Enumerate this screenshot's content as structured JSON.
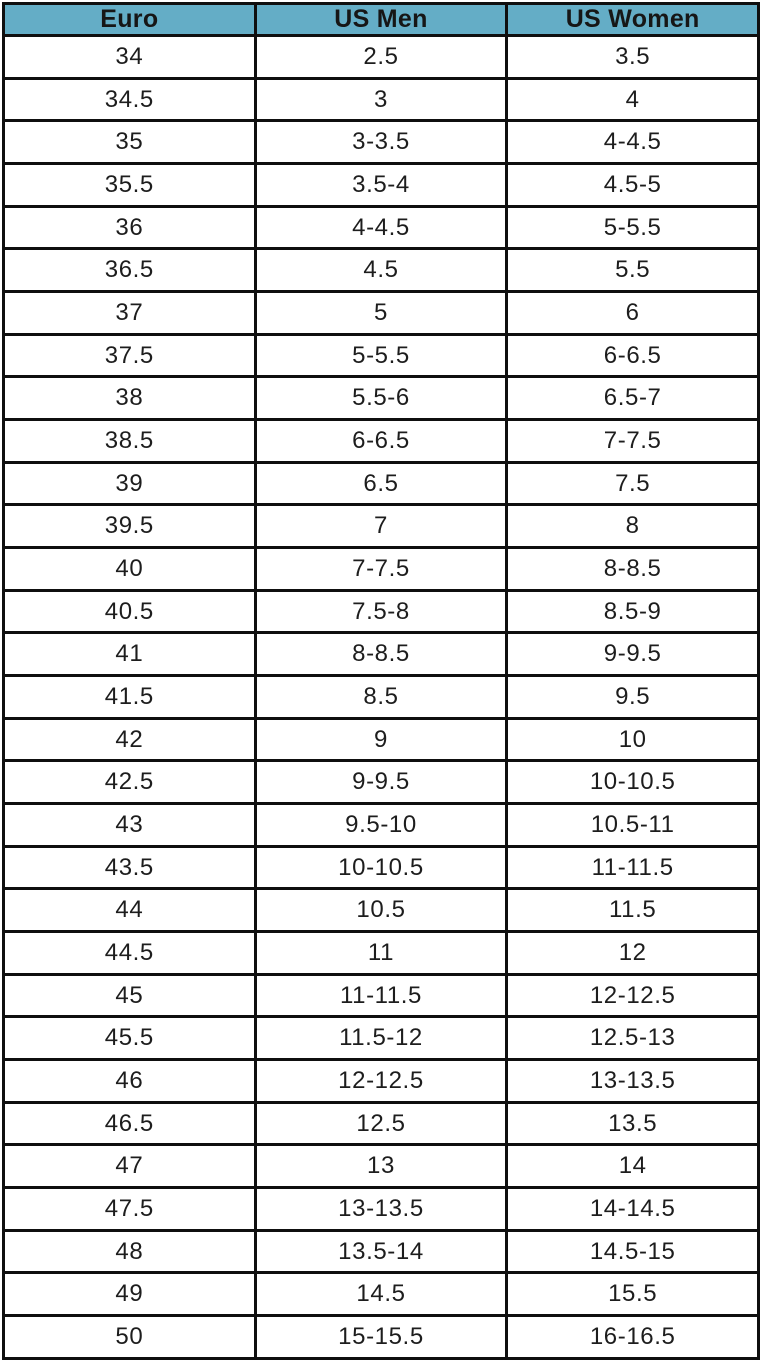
{
  "chart_data": {
    "type": "table",
    "columns": [
      "Euro",
      "US Men",
      "US Women"
    ],
    "rows": [
      [
        "34",
        "2.5",
        "3.5"
      ],
      [
        "34.5",
        "3",
        "4"
      ],
      [
        "35",
        "3-3.5",
        "4-4.5"
      ],
      [
        "35.5",
        "3.5-4",
        "4.5-5"
      ],
      [
        "36",
        "4-4.5",
        "5-5.5"
      ],
      [
        "36.5",
        "4.5",
        "5.5"
      ],
      [
        "37",
        "5",
        "6"
      ],
      [
        "37.5",
        "5-5.5",
        "6-6.5"
      ],
      [
        "38",
        "5.5-6",
        "6.5-7"
      ],
      [
        "38.5",
        "6-6.5",
        "7-7.5"
      ],
      [
        "39",
        "6.5",
        "7.5"
      ],
      [
        "39.5",
        "7",
        "8"
      ],
      [
        "40",
        "7-7.5",
        "8-8.5"
      ],
      [
        "40.5",
        "7.5-8",
        "8.5-9"
      ],
      [
        "41",
        "8-8.5",
        "9-9.5"
      ],
      [
        "41.5",
        "8.5",
        "9.5"
      ],
      [
        "42",
        "9",
        "10"
      ],
      [
        "42.5",
        "9-9.5",
        "10-10.5"
      ],
      [
        "43",
        "9.5-10",
        "10.5-11"
      ],
      [
        "43.5",
        "10-10.5",
        "11-11.5"
      ],
      [
        "44",
        "10.5",
        "11.5"
      ],
      [
        "44.5",
        "11",
        "12"
      ],
      [
        "45",
        "11-11.5",
        "12-12.5"
      ],
      [
        "45.5",
        "11.5-12",
        "12.5-13"
      ],
      [
        "46",
        "12-12.5",
        "13-13.5"
      ],
      [
        "46.5",
        "12.5",
        "13.5"
      ],
      [
        "47",
        "13",
        "14"
      ],
      [
        "47.5",
        "13-13.5",
        "14-14.5"
      ],
      [
        "48",
        "13.5-14",
        "14.5-15"
      ],
      [
        "49",
        "14.5",
        "15.5"
      ],
      [
        "50",
        "15-15.5",
        "16-16.5"
      ]
    ]
  },
  "colors": {
    "header_bg": "#64adc6",
    "border": "#0f0f0f",
    "header_text": "#161616",
    "cell_text": "#1d1d1d",
    "row_bg": "#ffffff"
  }
}
